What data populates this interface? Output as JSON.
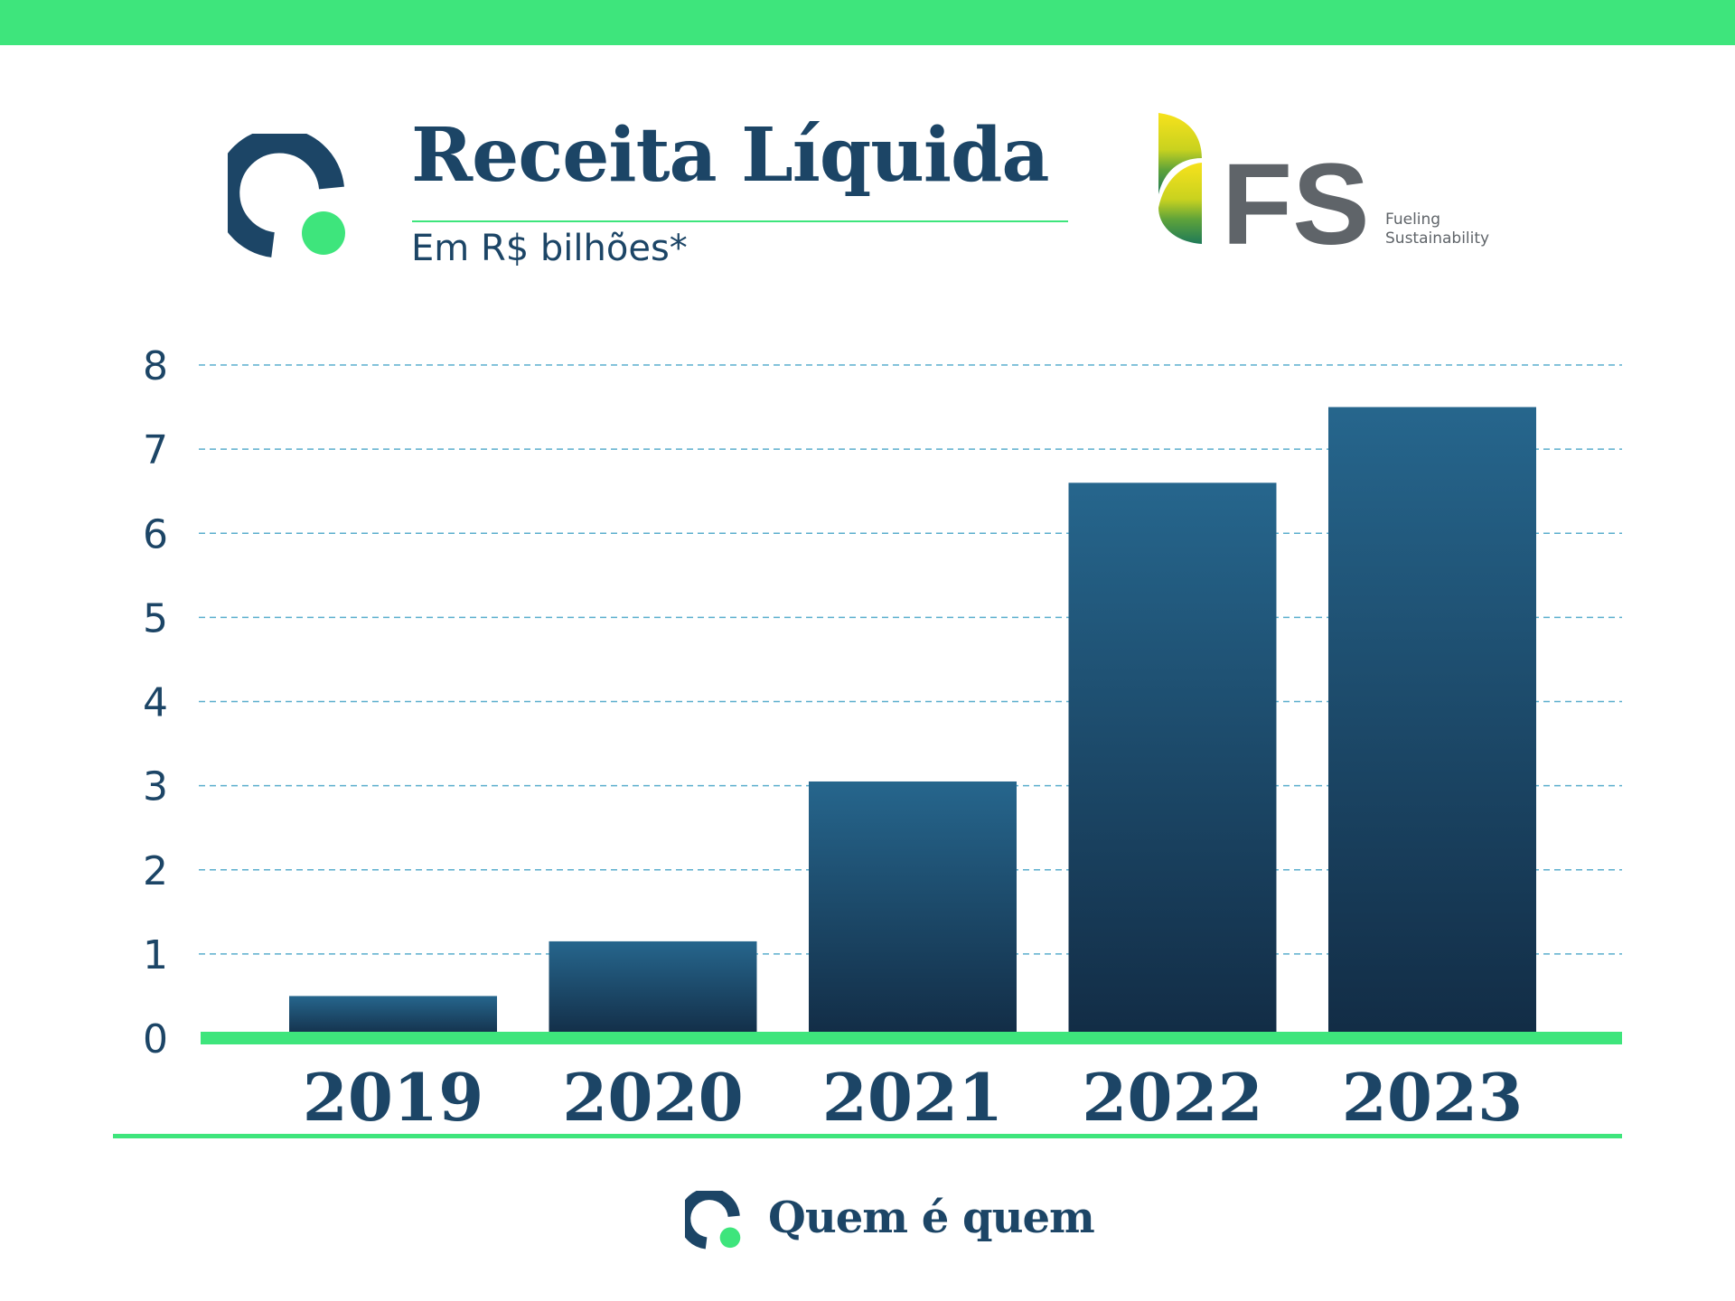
{
  "header": {
    "title": "Receita Líquida",
    "subtitle": "Em R$ bilhões*"
  },
  "partner_logo": {
    "monogram": "FS",
    "tagline_line1": "Fueling",
    "tagline_line2": "Sustainability",
    "colors": {
      "monogram": "#5f6469",
      "leaf_top": "#f7e21c",
      "leaf_bottom": "#1f7a58"
    }
  },
  "footer": {
    "brand": "Quem é quem"
  },
  "colors": {
    "accent_green": "#3ee57c",
    "navy": "#1c4566",
    "bar_top": "#26668d",
    "bar_bottom": "#122c45",
    "grid": "#5aaecd"
  },
  "chart_data": {
    "type": "bar",
    "categories": [
      "2019",
      "2020",
      "2021",
      "2022",
      "2023"
    ],
    "values": [
      0.5,
      1.15,
      3.05,
      6.6,
      7.5
    ],
    "title": "Receita Líquida",
    "subtitle": "Em R$ bilhões*",
    "xlabel": "",
    "ylabel": "",
    "ylim": [
      0,
      8
    ],
    "yticks": [
      0,
      1,
      2,
      3,
      4,
      5,
      6,
      7,
      8
    ],
    "grid": true,
    "legend": "none"
  }
}
